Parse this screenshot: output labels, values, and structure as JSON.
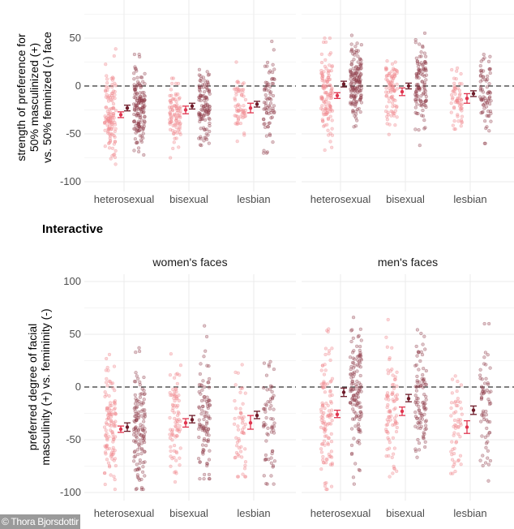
{
  "section_title": "Interactive",
  "watermark": "© Thora Bjorsdottir",
  "colors": {
    "group_a_points": "#f08a8f",
    "group_b_points": "#8e3a48",
    "group_a_mean": "#e0354f",
    "group_b_mean": "#6e1a28",
    "zero_line": "#333333",
    "grid": "#ebebeb"
  },
  "chart_data": [
    {
      "type": "scatter",
      "ylabel": [
        "strength of preference for",
        "50% masculinized (+)",
        "vs. 50% feminized (-) face"
      ],
      "ylim": [
        -110,
        90
      ],
      "yticks": [
        50,
        0,
        -50,
        -100
      ],
      "grid": true,
      "reference_line": 0,
      "panels": [
        {
          "title": "",
          "categories": [
            "heterosexual",
            "bisexual",
            "lesbian"
          ],
          "groups": [
            {
              "a": {
                "mean": -30,
                "ci": [
                  -33,
                  -27
                ],
                "range": [
                  -88,
                  42
                ]
              },
              "b": {
                "mean": -23,
                "ci": [
                  -26,
                  -20
                ],
                "range": [
                  -72,
                  33
                ]
              }
            },
            {
              "a": {
                "mean": -25,
                "ci": [
                  -29,
                  -21
                ],
                "range": [
                  -75,
                  8
                ]
              },
              "b": {
                "mean": -21,
                "ci": [
                  -24,
                  -18
                ],
                "range": [
                  -62,
                  30
                ]
              }
            },
            {
              "a": {
                "mean": -23,
                "ci": [
                  -28,
                  -18
                ],
                "range": [
                  -60,
                  25
                ]
              },
              "b": {
                "mean": -19,
                "ci": [
                  -22,
                  -16
                ],
                "range": [
                  -70,
                  64
                ]
              }
            }
          ]
        },
        {
          "title": "",
          "categories": [
            "heterosexual",
            "bisexual",
            "lesbian"
          ],
          "groups": [
            {
              "a": {
                "mean": -10,
                "ci": [
                  -13,
                  -7
                ],
                "range": [
                  -67,
                  50
                ]
              },
              "b": {
                "mean": 2,
                "ci": [
                  -1,
                  5
                ],
                "range": [
                  -50,
                  55
                ]
              }
            },
            {
              "a": {
                "mean": -6,
                "ci": [
                  -10,
                  -2
                ],
                "range": [
                  -62,
                  28
                ]
              },
              "b": {
                "mean": 0,
                "ci": [
                  -3,
                  3
                ],
                "range": [
                  -62,
                  56
                ]
              }
            },
            {
              "a": {
                "mean": -13,
                "ci": [
                  -18,
                  -8
                ],
                "range": [
                  -45,
                  29
                ]
              },
              "b": {
                "mean": -8,
                "ci": [
                  -11,
                  -5
                ],
                "range": [
                  -60,
                  52
                ]
              }
            }
          ]
        }
      ]
    },
    {
      "type": "scatter",
      "ylabel": [
        "preferred degree of facial",
        "masculinity (+) vs. femininity (-)"
      ],
      "ylim": [
        -108,
        108
      ],
      "yticks": [
        100,
        50,
        0,
        -50,
        -100
      ],
      "grid": true,
      "reference_line": 0,
      "panels": [
        {
          "title": "women's faces",
          "categories": [
            "heterosexual",
            "bisexual",
            "lesbian"
          ],
          "groups": [
            {
              "a": {
                "mean": -40,
                "ci": [
                  -43,
                  -37
                ],
                "range": [
                  -97,
                  38
                ]
              },
              "b": {
                "mean": -38,
                "ci": [
                  -42,
                  -34
                ],
                "range": [
                  -97,
                  47
                ]
              }
            },
            {
              "a": {
                "mean": -34,
                "ci": [
                  -38,
                  -30
                ],
                "range": [
                  -90,
                  46
                ]
              },
              "b": {
                "mean": -31,
                "ci": [
                  -34,
                  -27
                ],
                "range": [
                  -87,
                  58
                ]
              }
            },
            {
              "a": {
                "mean": -34,
                "ci": [
                  -40,
                  -27
                ],
                "range": [
                  -85,
                  57
                ]
              },
              "b": {
                "mean": -27,
                "ci": [
                  -30,
                  -23
                ],
                "range": [
                  -92,
                  60
                ]
              }
            }
          ]
        },
        {
          "title": "men's faces",
          "categories": [
            "heterosexual",
            "bisexual",
            "lesbian"
          ],
          "groups": [
            {
              "a": {
                "mean": -26,
                "ci": [
                  -29,
                  -22
                ],
                "range": [
                  -97,
                  55
                ]
              },
              "b": {
                "mean": -5,
                "ci": [
                  -9,
                  -1
                ],
                "range": [
                  -92,
                  66
                ]
              }
            },
            {
              "a": {
                "mean": -23,
                "ci": [
                  -27,
                  -19
                ],
                "range": [
                  -85,
                  67
                ]
              },
              "b": {
                "mean": -11,
                "ci": [
                  -14,
                  -7
                ],
                "range": [
                  -80,
                  68
                ]
              }
            },
            {
              "a": {
                "mean": -38,
                "ci": [
                  -44,
                  -32
                ],
                "range": [
                  -82,
                  36
                ]
              },
              "b": {
                "mean": -22,
                "ci": [
                  -26,
                  -18
                ],
                "range": [
                  -89,
                  60
                ]
              }
            }
          ]
        }
      ]
    }
  ]
}
